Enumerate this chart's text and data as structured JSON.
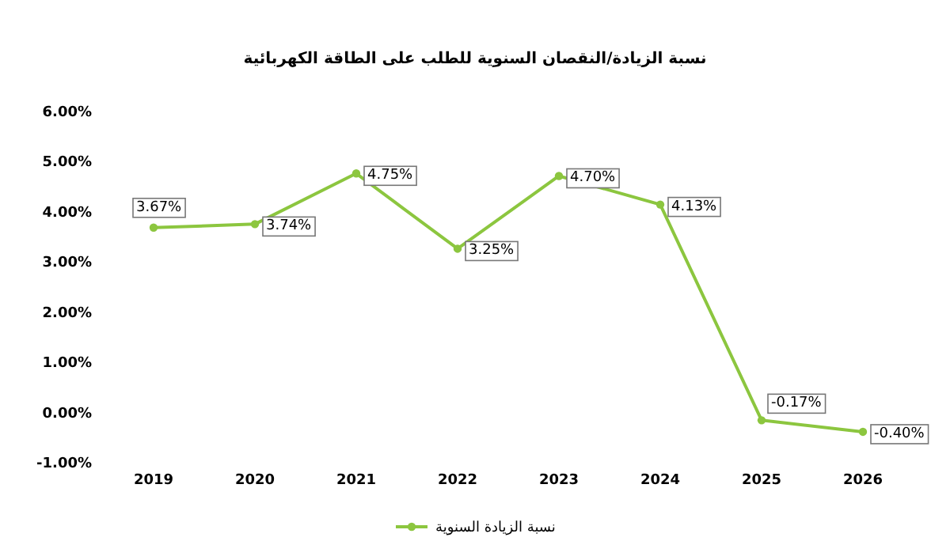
{
  "chart_data": {
    "type": "line",
    "title": "نسبة الزيادة/النقصان السنوية للطلب على الطاقة الكهربائية",
    "categories": [
      "2019",
      "2020",
      "2021",
      "2022",
      "2023",
      "2024",
      "2025",
      "2026"
    ],
    "series": [
      {
        "name": "نسبة الزيادة السنوية",
        "color": "#8cc63f",
        "values": [
          3.67,
          3.74,
          4.75,
          3.25,
          4.7,
          4.13,
          -0.17,
          -0.4
        ],
        "value_labels": [
          "3.67%",
          "3.74%",
          "4.75%",
          "3.25%",
          "4.70%",
          "4.13%",
          "-0.17%",
          "-0.40%"
        ]
      }
    ],
    "ylim": [
      -1,
      6
    ],
    "yticks": [
      {
        "value": -1,
        "label": "-1.00%"
      },
      {
        "value": 0,
        "label": "0.00%"
      },
      {
        "value": 1,
        "label": "1.00%"
      },
      {
        "value": 2,
        "label": "2.00%"
      },
      {
        "value": 3,
        "label": "3.00%"
      },
      {
        "value": 4,
        "label": "4.00%"
      },
      {
        "value": 5,
        "label": "5.00%"
      },
      {
        "value": 6,
        "label": "6.00%"
      }
    ],
    "marker": "circle",
    "line_style": "solid",
    "grid": false,
    "legend": "bottom"
  }
}
